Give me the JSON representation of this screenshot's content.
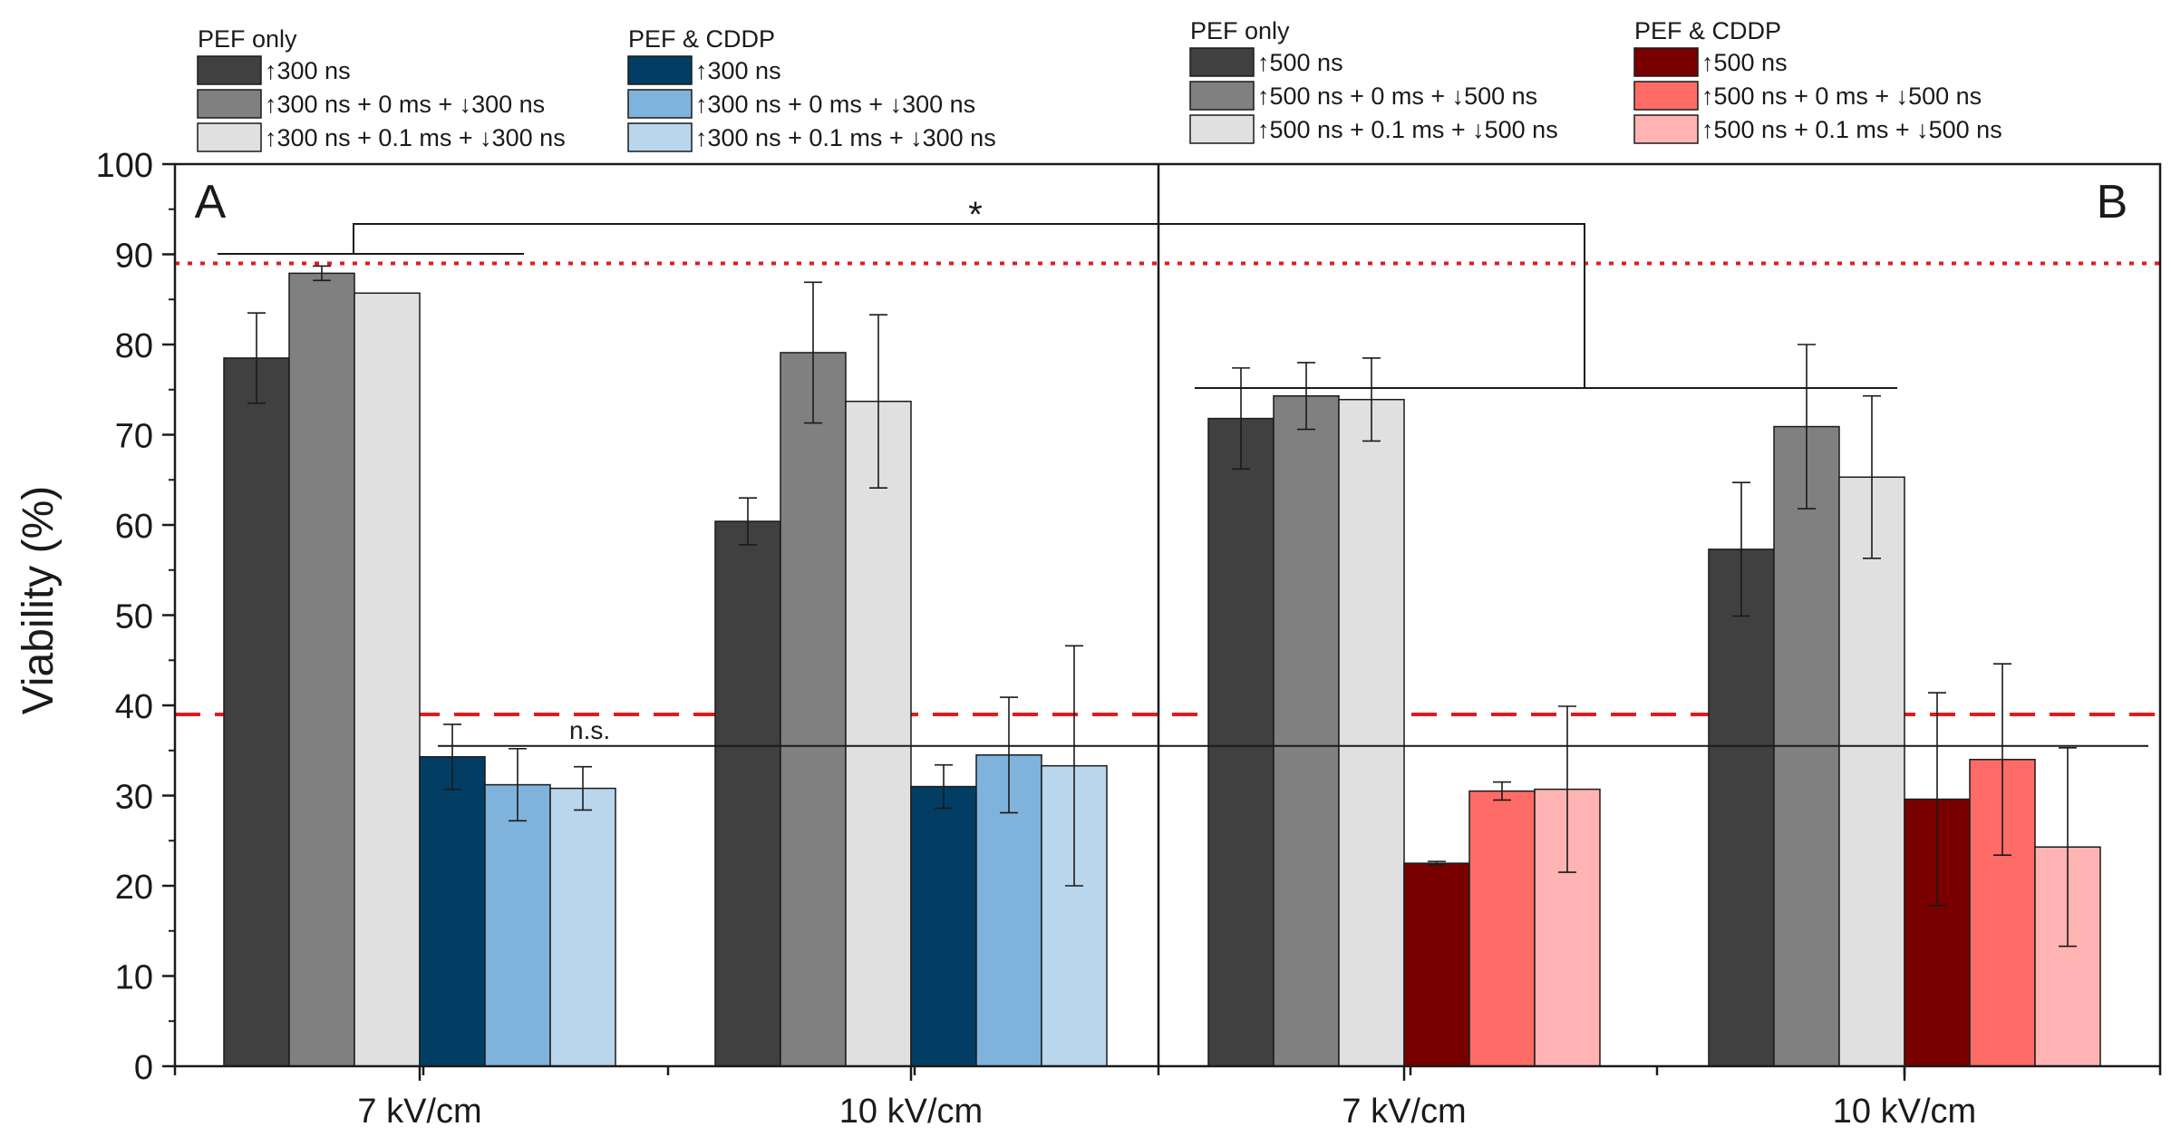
{
  "chart_data": {
    "type": "bar",
    "ylabel": "Viability (%)",
    "ylim": [
      0,
      100
    ],
    "yticks": [
      0,
      10,
      20,
      30,
      40,
      50,
      60,
      70,
      80,
      90,
      100
    ],
    "reference_lines": [
      {
        "value": 89,
        "style": "dotted",
        "color": "#e31a1c"
      },
      {
        "value": 39,
        "style": "dashed",
        "color": "#e31a1c"
      }
    ],
    "significance": {
      "star": "*",
      "ns": "n.s."
    },
    "panels": [
      {
        "label": "A",
        "categories": [
          "7 kV/cm",
          "10 kV/cm"
        ],
        "legend": {
          "groups": [
            {
              "title": "PEF only",
              "entries": [
                "↑300 ns",
                "↑300 ns + 0 ms + ↓300 ns",
                "↑300 ns + 0.1 ms + ↓300 ns"
              ]
            },
            {
              "title": "PEF & CDDP",
              "entries": [
                "↑300 ns",
                "↑300 ns + 0 ms + ↓300 ns",
                "↑300 ns + 0.1 ms + ↓300 ns"
              ]
            }
          ]
        },
        "series": [
          {
            "name": "↑300 ns",
            "group": "PEF only",
            "color": "#404040",
            "values": [
              78.5,
              60.4
            ],
            "errors": [
              5.0,
              2.6
            ]
          },
          {
            "name": "↑300 ns + 0 ms + ↓300 ns",
            "group": "PEF only",
            "color": "#808080",
            "values": [
              87.9,
              79.1
            ],
            "errors": [
              0.8,
              7.8
            ]
          },
          {
            "name": "↑300 ns + 0.1 ms + ↓300 ns",
            "group": "PEF only",
            "color": "#e0e0e0",
            "values": [
              85.7,
              73.7
            ],
            "errors": [
              0,
              9.6
            ]
          },
          {
            "name": "↑300 ns",
            "group": "PEF & CDDP",
            "color": "#023e63",
            "values": [
              34.3,
              31.0
            ],
            "errors": [
              3.6,
              2.4
            ]
          },
          {
            "name": "↑300 ns + 0 ms + ↓300 ns",
            "group": "PEF & CDDP",
            "color": "#80b3db",
            "values": [
              31.2,
              34.5
            ],
            "errors": [
              4.0,
              6.4
            ]
          },
          {
            "name": "↑300 ns + 0.1 ms + ↓300 ns",
            "group": "PEF & CDDP",
            "color": "#bad6ec",
            "values": [
              30.8,
              33.3
            ],
            "errors": [
              2.4,
              13.3
            ]
          }
        ]
      },
      {
        "label": "B",
        "categories": [
          "7 kV/cm",
          "10 kV/cm"
        ],
        "legend": {
          "groups": [
            {
              "title": "PEF only",
              "entries": [
                "↑500 ns",
                "↑500 ns + 0 ms + ↓500 ns",
                "↑500 ns + 0.1 ms + ↓500 ns"
              ]
            },
            {
              "title": "PEF & CDDP",
              "entries": [
                "↑500 ns",
                "↑500 ns + 0 ms + ↓500 ns",
                "↑500 ns + 0.1 ms + ↓500 ns"
              ]
            }
          ]
        },
        "series": [
          {
            "name": "↑500 ns",
            "group": "PEF only",
            "color": "#404040",
            "values": [
              71.8,
              57.3
            ],
            "errors": [
              5.6,
              7.4
            ]
          },
          {
            "name": "↑500 ns + 0 ms + ↓500 ns",
            "group": "PEF only",
            "color": "#808080",
            "values": [
              74.3,
              70.9
            ],
            "errors": [
              3.7,
              9.1
            ]
          },
          {
            "name": "↑500 ns + 0.1 ms + ↓500 ns",
            "group": "PEF only",
            "color": "#e0e0e0",
            "values": [
              73.9,
              65.3
            ],
            "errors": [
              4.6,
              9.0
            ]
          },
          {
            "name": "↑500 ns",
            "group": "PEF & CDDP",
            "color": "#7a0000",
            "values": [
              22.5,
              29.6
            ],
            "errors": [
              0.2,
              11.8
            ]
          },
          {
            "name": "↑500 ns + 0 ms + ↓500 ns",
            "group": "PEF & CDDP",
            "color": "#ff6b66",
            "values": [
              30.5,
              34.0
            ],
            "errors": [
              1.0,
              10.6
            ]
          },
          {
            "name": "↑500 ns + 0.1 ms + ↓500 ns",
            "group": "PEF & CDDP",
            "color": "#ffb3b3",
            "values": [
              30.7,
              24.3
            ],
            "errors": [
              9.2,
              11.0
            ]
          }
        ]
      }
    ]
  }
}
